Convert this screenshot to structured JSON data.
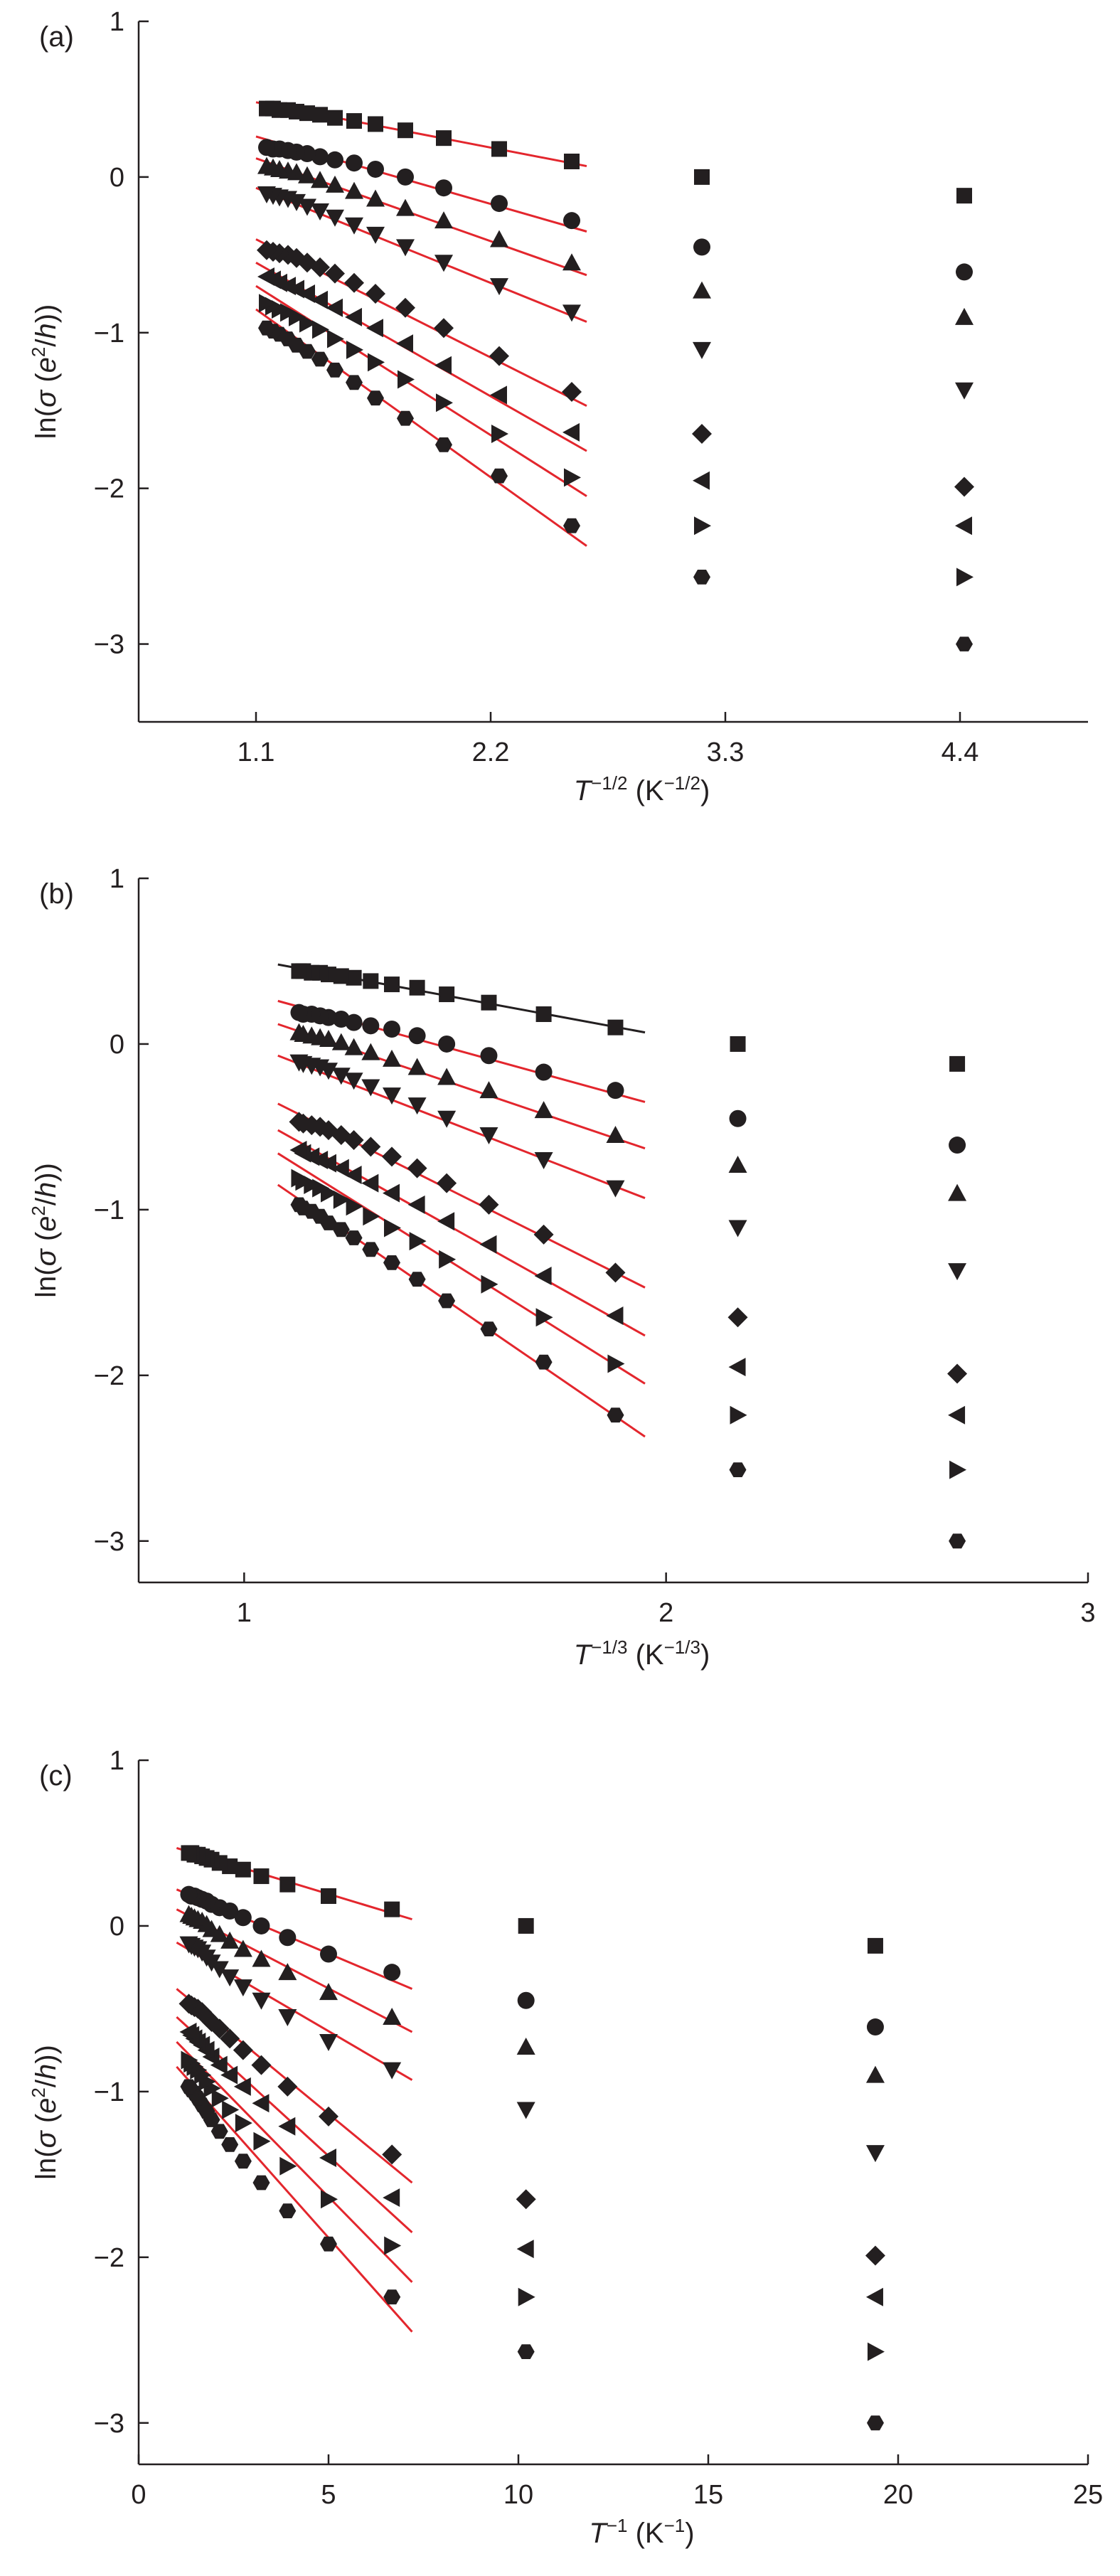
{
  "figure": {
    "background": "#ffffff",
    "ink_color": "#231f20",
    "fit_line_color": "#e3262d"
  },
  "chart_data": [
    {
      "panel_label": "(a)",
      "type": "scatter",
      "xlabel": "T^{-1/2} (K^{-1/2})",
      "xlabel_parts": {
        "var": "T",
        "exp": "−1/2",
        "unit_open": " (K",
        "unit_exp": "−1/2",
        "unit_close": ")"
      },
      "ylabel": "ln(σ (e²/h))",
      "ylabel_parts": {
        "pre": "ln(",
        "sigma": "σ",
        "mid": " (",
        "e": "e",
        "sup": "2",
        "slash": "/",
        "h": "h",
        "post": "))"
      },
      "xlim": [
        0.55,
        5.0
      ],
      "ylim": [
        -3.5,
        1.0
      ],
      "xticks": [
        1.1,
        2.2,
        3.3,
        4.4
      ],
      "xtick_labels": [
        "1.1",
        "2.2",
        "3.3",
        "4.4"
      ],
      "yticks": [
        -3,
        -2,
        -1,
        0,
        1
      ],
      "ytick_labels": [
        "−3",
        "−2",
        "−1",
        "0",
        "1"
      ],
      "x": [
        2.58,
        2.24,
        1.98,
        1.8,
        1.66,
        1.56,
        1.47,
        1.4,
        1.34,
        1.29,
        1.25,
        1.21,
        1.18,
        1.15,
        3.19,
        4.42
      ],
      "series": [
        {
          "marker": "square",
          "fit_color": "red",
          "values": [
            0.1,
            0.18,
            0.25,
            0.3,
            0.34,
            0.36,
            0.38,
            0.4,
            0.41,
            0.42,
            0.43,
            0.43,
            0.44,
            0.44,
            0.0,
            -0.12
          ],
          "fit": [
            [
              1.1,
              0.48
            ],
            [
              2.65,
              0.07
            ]
          ]
        },
        {
          "marker": "circle",
          "fit_color": "red",
          "values": [
            -0.28,
            -0.17,
            -0.07,
            0.0,
            0.05,
            0.09,
            0.11,
            0.13,
            0.15,
            0.16,
            0.17,
            0.18,
            0.18,
            0.19,
            -0.45,
            -0.61
          ],
          "fit": [
            [
              1.1,
              0.26
            ],
            [
              2.65,
              -0.35
            ]
          ]
        },
        {
          "marker": "triangle-up",
          "fit_color": "red",
          "values": [
            -0.55,
            -0.4,
            -0.28,
            -0.2,
            -0.14,
            -0.09,
            -0.05,
            -0.02,
            0.01,
            0.03,
            0.04,
            0.05,
            0.06,
            0.07,
            -0.73,
            -0.9
          ],
          "fit": [
            [
              1.1,
              0.12
            ],
            [
              2.65,
              -0.63
            ]
          ]
        },
        {
          "marker": "triangle-down",
          "fit_color": "red",
          "values": [
            -0.87,
            -0.7,
            -0.55,
            -0.45,
            -0.37,
            -0.31,
            -0.26,
            -0.22,
            -0.19,
            -0.16,
            -0.14,
            -0.13,
            -0.12,
            -0.11,
            -1.11,
            -1.37
          ],
          "fit": [
            [
              1.1,
              -0.07
            ],
            [
              2.65,
              -0.93
            ]
          ]
        },
        {
          "marker": "diamond",
          "fit_color": "red",
          "values": [
            -1.38,
            -1.15,
            -0.97,
            -0.84,
            -0.75,
            -0.68,
            -0.62,
            -0.58,
            -0.55,
            -0.52,
            -0.5,
            -0.49,
            -0.48,
            -0.47,
            -1.65,
            -1.99
          ],
          "fit": [
            [
              1.1,
              -0.4
            ],
            [
              2.65,
              -1.47
            ]
          ]
        },
        {
          "marker": "triangle-left",
          "fit_color": "red",
          "values": [
            -1.64,
            -1.4,
            -1.21,
            -1.07,
            -0.97,
            -0.9,
            -0.84,
            -0.79,
            -0.75,
            -0.72,
            -0.7,
            -0.68,
            -0.66,
            -0.64,
            -1.95,
            -2.24
          ],
          "fit": [
            [
              1.1,
              -0.55
            ],
            [
              2.65,
              -1.76
            ]
          ]
        },
        {
          "marker": "triangle-right",
          "fit_color": "red",
          "values": [
            -1.93,
            -1.65,
            -1.45,
            -1.3,
            -1.19,
            -1.11,
            -1.04,
            -0.98,
            -0.94,
            -0.9,
            -0.87,
            -0.85,
            -0.83,
            -0.81,
            -2.24,
            -2.57
          ],
          "fit": [
            [
              1.1,
              -0.7
            ],
            [
              2.65,
              -2.05
            ]
          ]
        },
        {
          "marker": "hexagon",
          "fit_color": "red",
          "values": [
            -2.24,
            -1.92,
            -1.72,
            -1.55,
            -1.42,
            -1.32,
            -1.24,
            -1.17,
            -1.12,
            -1.08,
            -1.04,
            -1.01,
            -0.99,
            -0.97,
            -2.57,
            -3.0
          ],
          "fit": [
            [
              1.1,
              -0.85
            ],
            [
              2.65,
              -2.37
            ]
          ]
        }
      ]
    },
    {
      "panel_label": "(b)",
      "type": "scatter",
      "xlabel": "T^{-1/3} (K^{-1/3})",
      "xlabel_parts": {
        "var": "T",
        "exp": "−1/3",
        "unit_open": " (K",
        "unit_exp": "−1/3",
        "unit_close": ")"
      },
      "ylabel": "ln(σ (e²/h))",
      "ylabel_parts": {
        "pre": "ln(",
        "sigma": "σ",
        "mid": " (",
        "e": "e",
        "sup": "2",
        "slash": "/",
        "h": "h",
        "post": "))"
      },
      "xlim": [
        0.75,
        3.0
      ],
      "ylim": [
        -3.25,
        1.0
      ],
      "xticks": [
        1,
        2,
        3
      ],
      "xtick_labels": [
        "1",
        "2",
        "3"
      ],
      "yticks": [
        -3,
        -2,
        -1,
        0,
        1
      ],
      "ytick_labels": [
        "−3",
        "−2",
        "−1",
        "0",
        "1"
      ],
      "x": [
        1.88,
        1.71,
        1.58,
        1.48,
        1.41,
        1.35,
        1.3,
        1.26,
        1.23,
        1.2,
        1.18,
        1.16,
        1.14,
        1.13,
        2.17,
        2.69
      ],
      "series": [
        {
          "marker": "square",
          "fit_color": "black",
          "values": [
            0.1,
            0.18,
            0.25,
            0.3,
            0.34,
            0.36,
            0.38,
            0.4,
            0.41,
            0.42,
            0.43,
            0.43,
            0.44,
            0.44,
            0.0,
            -0.12
          ],
          "fit": [
            [
              1.08,
              0.48
            ],
            [
              1.95,
              0.07
            ]
          ]
        },
        {
          "marker": "circle",
          "fit_color": "red",
          "values": [
            -0.28,
            -0.17,
            -0.07,
            0.0,
            0.05,
            0.09,
            0.11,
            0.13,
            0.15,
            0.16,
            0.17,
            0.18,
            0.18,
            0.19,
            -0.45,
            -0.61
          ],
          "fit": [
            [
              1.08,
              0.26
            ],
            [
              1.95,
              -0.35
            ]
          ]
        },
        {
          "marker": "triangle-up",
          "fit_color": "red",
          "values": [
            -0.55,
            -0.4,
            -0.28,
            -0.2,
            -0.14,
            -0.09,
            -0.05,
            -0.02,
            0.01,
            0.03,
            0.04,
            0.05,
            0.06,
            0.07,
            -0.73,
            -0.9
          ],
          "fit": [
            [
              1.08,
              0.12
            ],
            [
              1.95,
              -0.63
            ]
          ]
        },
        {
          "marker": "triangle-down",
          "fit_color": "red",
          "values": [
            -0.87,
            -0.7,
            -0.55,
            -0.45,
            -0.37,
            -0.31,
            -0.26,
            -0.22,
            -0.19,
            -0.16,
            -0.14,
            -0.13,
            -0.12,
            -0.11,
            -1.11,
            -1.37
          ],
          "fit": [
            [
              1.08,
              -0.07
            ],
            [
              1.95,
              -0.93
            ]
          ]
        },
        {
          "marker": "diamond",
          "fit_color": "red",
          "values": [
            -1.38,
            -1.15,
            -0.97,
            -0.84,
            -0.75,
            -0.68,
            -0.62,
            -0.58,
            -0.55,
            -0.52,
            -0.5,
            -0.49,
            -0.48,
            -0.47,
            -1.65,
            -1.99
          ],
          "fit": [
            [
              1.08,
              -0.36
            ],
            [
              1.95,
              -1.47
            ]
          ]
        },
        {
          "marker": "triangle-left",
          "fit_color": "red",
          "values": [
            -1.64,
            -1.4,
            -1.21,
            -1.07,
            -0.97,
            -0.9,
            -0.84,
            -0.79,
            -0.75,
            -0.72,
            -0.7,
            -0.68,
            -0.66,
            -0.64,
            -1.95,
            -2.24
          ],
          "fit": [
            [
              1.08,
              -0.52
            ],
            [
              1.95,
              -1.76
            ]
          ]
        },
        {
          "marker": "triangle-right",
          "fit_color": "red",
          "values": [
            -1.93,
            -1.65,
            -1.45,
            -1.3,
            -1.19,
            -1.11,
            -1.04,
            -0.98,
            -0.94,
            -0.9,
            -0.87,
            -0.85,
            -0.83,
            -0.81,
            -2.24,
            -2.57
          ],
          "fit": [
            [
              1.08,
              -0.66
            ],
            [
              1.95,
              -2.05
            ]
          ]
        },
        {
          "marker": "hexagon",
          "fit_color": "red",
          "values": [
            -2.24,
            -1.92,
            -1.72,
            -1.55,
            -1.42,
            -1.32,
            -1.24,
            -1.17,
            -1.12,
            -1.08,
            -1.04,
            -1.01,
            -0.99,
            -0.97,
            -2.57,
            -3.0
          ],
          "fit": [
            [
              1.08,
              -0.85
            ],
            [
              1.95,
              -2.37
            ]
          ]
        }
      ]
    },
    {
      "panel_label": "(c)",
      "type": "scatter",
      "xlabel": "T^{-1} (K^{-1})",
      "xlabel_parts": {
        "var": "T",
        "exp": "−1",
        "unit_open": " (K",
        "unit_exp": "−1",
        "unit_close": ")"
      },
      "ylabel": "ln(σ (e²/h))",
      "ylabel_parts": {
        "pre": "ln(",
        "sigma": "σ",
        "mid": " (",
        "e": "e",
        "sup": "2",
        "slash": "/",
        "h": "h",
        "post": "))"
      },
      "xlim": [
        0,
        25
      ],
      "ylim": [
        -3.25,
        1.0
      ],
      "xticks": [
        0,
        5,
        10,
        15,
        20,
        25
      ],
      "xtick_labels": [
        "0",
        "5",
        "10",
        "15",
        "20",
        "25"
      ],
      "yticks": [
        -3,
        -2,
        -1,
        0,
        1
      ],
      "ytick_labels": [
        "−3",
        "−2",
        "−1",
        "0",
        "1"
      ],
      "x": [
        6.67,
        5.0,
        3.92,
        3.23,
        2.75,
        2.4,
        2.13,
        1.92,
        1.79,
        1.67,
        1.56,
        1.47,
        1.39,
        1.32,
        10.2,
        19.4
      ],
      "series": [
        {
          "marker": "square",
          "fit_color": "red",
          "values": [
            0.1,
            0.18,
            0.25,
            0.3,
            0.34,
            0.36,
            0.38,
            0.4,
            0.41,
            0.42,
            0.43,
            0.43,
            0.44,
            0.44,
            0.0,
            -0.12
          ],
          "fit": [
            [
              1.0,
              0.47
            ],
            [
              7.2,
              0.04
            ]
          ]
        },
        {
          "marker": "circle",
          "fit_color": "red",
          "values": [
            -0.28,
            -0.17,
            -0.07,
            0.0,
            0.05,
            0.09,
            0.11,
            0.13,
            0.15,
            0.16,
            0.17,
            0.18,
            0.18,
            0.19,
            -0.45,
            -0.61
          ],
          "fit": [
            [
              1.0,
              0.22
            ],
            [
              7.2,
              -0.38
            ]
          ]
        },
        {
          "marker": "triangle-up",
          "fit_color": "red",
          "values": [
            -0.55,
            -0.4,
            -0.28,
            -0.2,
            -0.14,
            -0.09,
            -0.05,
            -0.02,
            0.01,
            0.03,
            0.04,
            0.05,
            0.06,
            0.07,
            -0.73,
            -0.9
          ],
          "fit": [
            [
              1.0,
              0.1
            ],
            [
              7.2,
              -0.64
            ]
          ]
        },
        {
          "marker": "triangle-down",
          "fit_color": "red",
          "values": [
            -0.87,
            -0.7,
            -0.55,
            -0.45,
            -0.37,
            -0.31,
            -0.26,
            -0.22,
            -0.19,
            -0.16,
            -0.14,
            -0.13,
            -0.12,
            -0.11,
            -1.11,
            -1.37
          ],
          "fit": [
            [
              1.0,
              -0.1
            ],
            [
              7.2,
              -0.93
            ]
          ]
        },
        {
          "marker": "diamond",
          "fit_color": "red",
          "values": [
            -1.38,
            -1.15,
            -0.97,
            -0.84,
            -0.75,
            -0.68,
            -0.62,
            -0.58,
            -0.55,
            -0.52,
            -0.5,
            -0.49,
            -0.48,
            -0.47,
            -1.65,
            -1.99
          ],
          "fit": [
            [
              1.0,
              -0.38
            ],
            [
              7.2,
              -1.55
            ]
          ]
        },
        {
          "marker": "triangle-left",
          "fit_color": "red",
          "values": [
            -1.64,
            -1.4,
            -1.21,
            -1.07,
            -0.97,
            -0.9,
            -0.84,
            -0.79,
            -0.75,
            -0.72,
            -0.7,
            -0.68,
            -0.66,
            -0.64,
            -1.95,
            -2.24
          ],
          "fit": [
            [
              1.0,
              -0.55
            ],
            [
              7.2,
              -1.85
            ]
          ]
        },
        {
          "marker": "triangle-right",
          "fit_color": "red",
          "values": [
            -1.93,
            -1.65,
            -1.45,
            -1.3,
            -1.19,
            -1.11,
            -1.04,
            -0.98,
            -0.94,
            -0.9,
            -0.87,
            -0.85,
            -0.83,
            -0.81,
            -2.24,
            -2.57
          ],
          "fit": [
            [
              1.0,
              -0.7
            ],
            [
              7.2,
              -2.15
            ]
          ]
        },
        {
          "marker": "hexagon",
          "fit_color": "red",
          "values": [
            -2.24,
            -1.92,
            -1.72,
            -1.55,
            -1.42,
            -1.32,
            -1.24,
            -1.17,
            -1.12,
            -1.08,
            -1.04,
            -1.01,
            -0.99,
            -0.97,
            -2.57,
            -3.0
          ],
          "fit": [
            [
              1.0,
              -0.85
            ],
            [
              7.2,
              -2.45
            ]
          ]
        }
      ]
    }
  ]
}
